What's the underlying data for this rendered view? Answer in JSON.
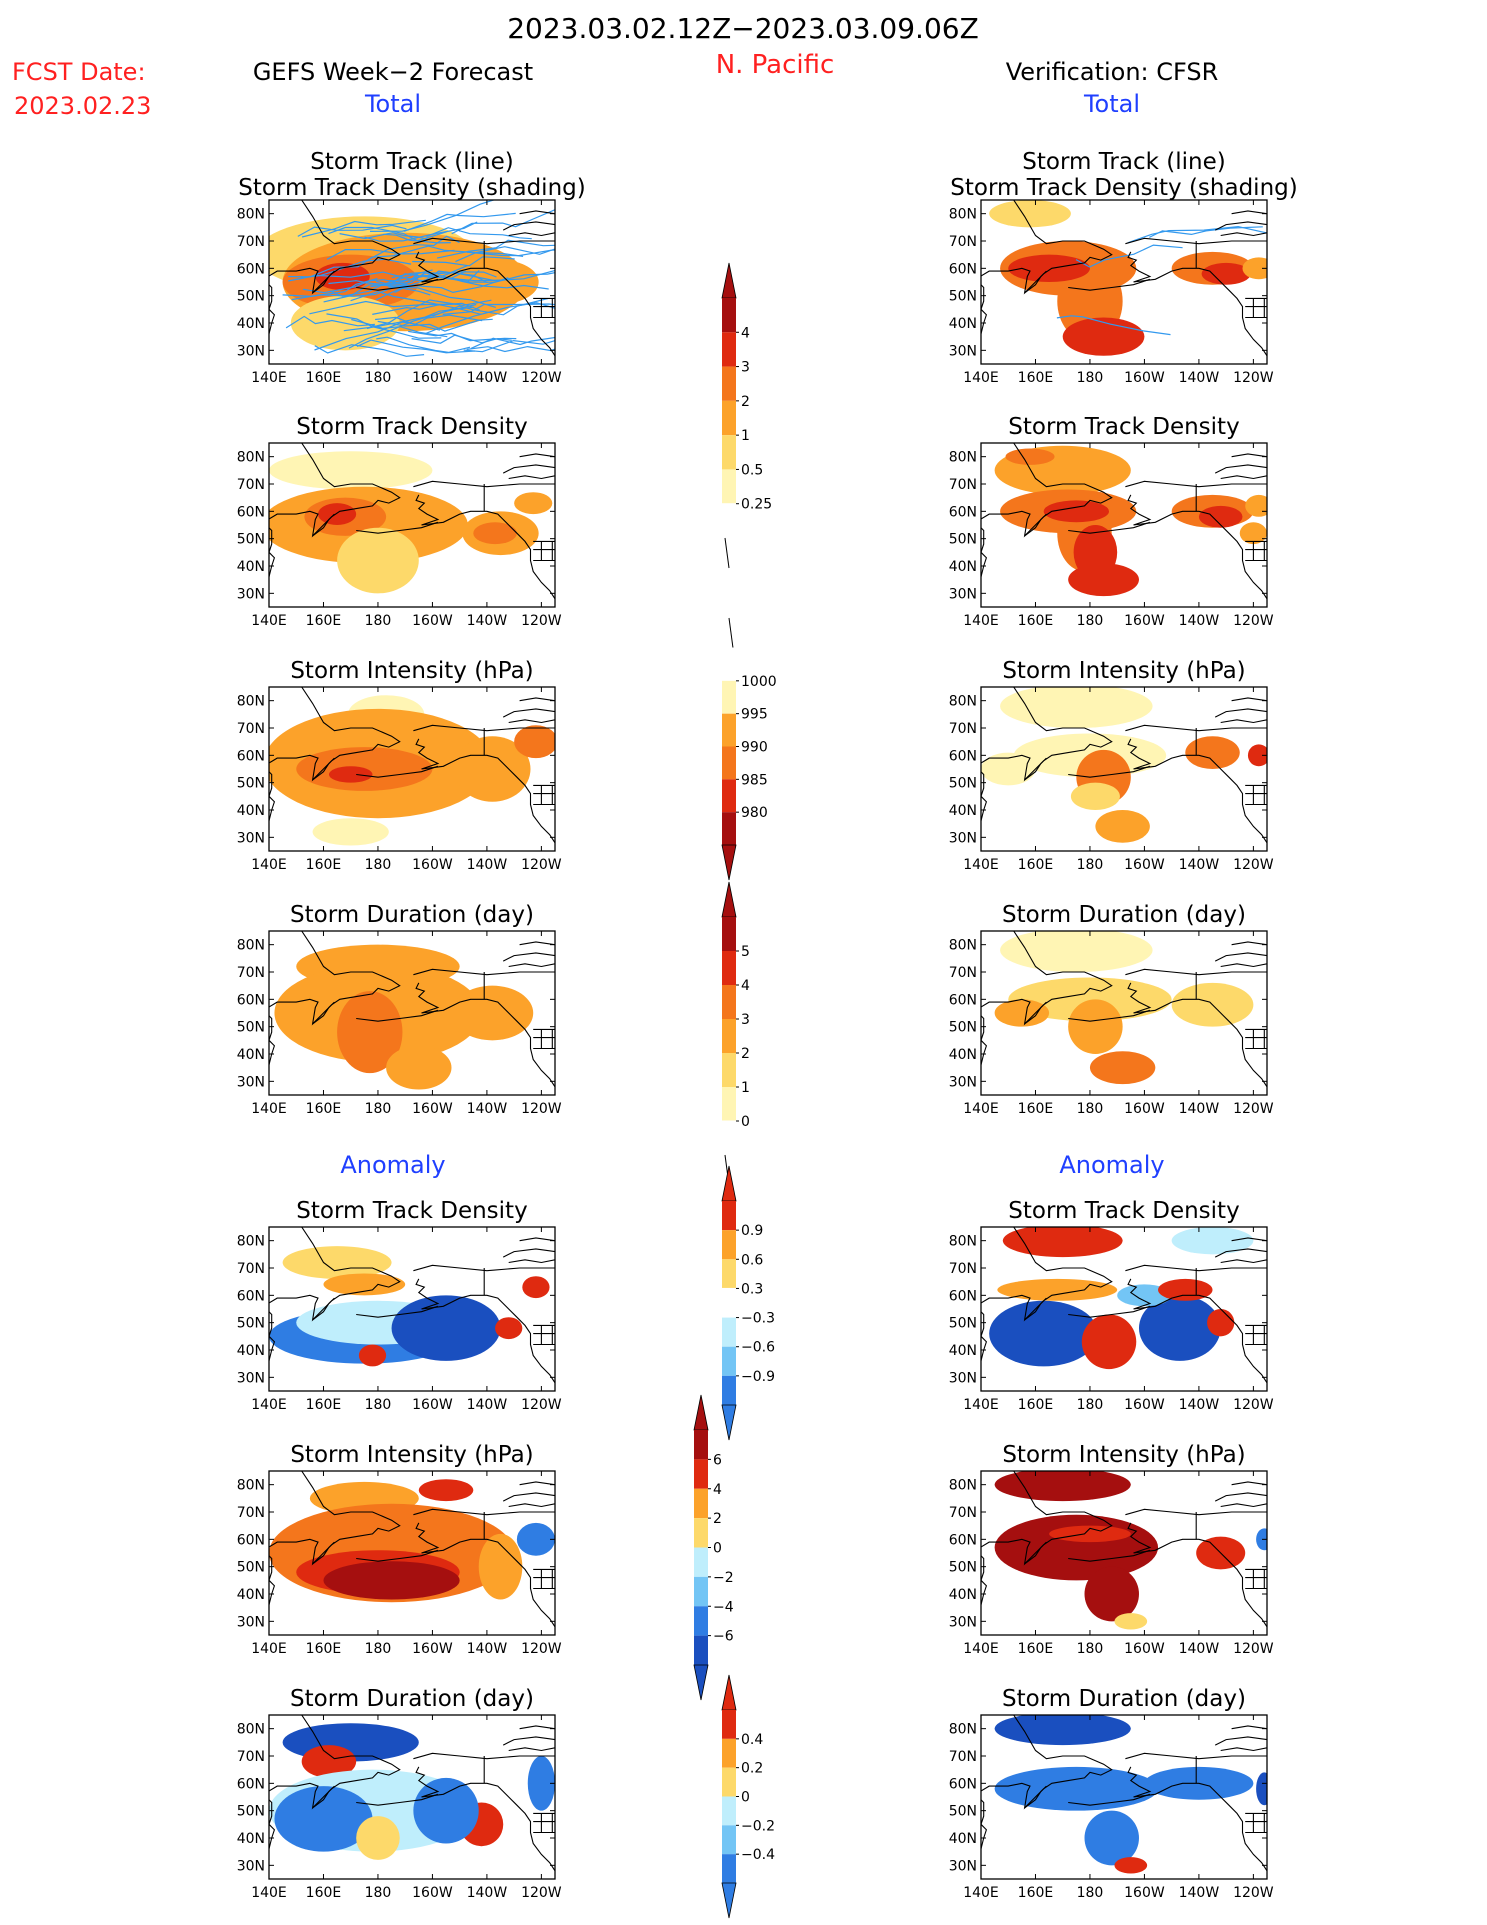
{
  "header": {
    "period": "2023.03.02.12Z−2023.03.09.06Z",
    "fcst_label": "FCST Date:",
    "fcst_date": "2023.02.23",
    "region": "N. Pacific",
    "left_title": "GEFS Week−2 Forecast",
    "right_title": "Verification: CFSR",
    "total_label": "Total",
    "anomaly_label": "Anomaly"
  },
  "panels": {
    "track": [
      "Storm Track (line)",
      "Storm Track Density (shading)"
    ],
    "density": "Storm Track Density",
    "intensity": "Storm Intensity (hPa)",
    "duration": "Storm Duration (day)"
  },
  "axes": {
    "lat_ticks": [
      "80N",
      "70N",
      "60N",
      "50N",
      "40N",
      "30N"
    ],
    "lon_ticks": [
      "140E",
      "160E",
      "180",
      "160W",
      "140W",
      "120W"
    ]
  },
  "colorbars": {
    "density": [
      "4",
      "3",
      "2",
      "1",
      "0.5",
      "0.25"
    ],
    "intensity": [
      "1000",
      "995",
      "990",
      "985",
      "980"
    ],
    "duration": [
      "5",
      "4",
      "3",
      "2",
      "1",
      "0"
    ],
    "density_anom": [
      "0.9",
      "0.6",
      "0.3",
      "−0.3",
      "−0.6",
      "−0.9"
    ],
    "intensity_anom": [
      "6",
      "4",
      "2",
      "0",
      "−2",
      "−4",
      "−6"
    ],
    "duration_anom": [
      "0.4",
      "0.2",
      "0",
      "−0.2",
      "−0.4"
    ]
  },
  "colors": {
    "title": "#000000",
    "red_text": "#ff2020",
    "blue_text": "#1f3fff",
    "ylw1": "#fff5b4",
    "ylw2": "#fdd96a",
    "org1": "#fca22a",
    "org2": "#f4761c",
    "red1": "#df2a10",
    "red2": "#a50f0f",
    "lb1": "#bfeefc",
    "lb2": "#73c5f5",
    "bl1": "#2f7de3",
    "bl2": "#1a4fbf",
    "track_line": "#3399ee"
  },
  "chart_data": {
    "type": "heatmap",
    "domain": "N. Pacific",
    "lat_range": [
      25,
      85
    ],
    "lon_range_east": [
      140,
      245
    ],
    "grid": false,
    "panels_left": [
      "track_density",
      "density",
      "intensity",
      "duration",
      "density_anom",
      "intensity_anom",
      "duration_anom"
    ],
    "panels_right": [
      "track_density",
      "density",
      "intensity",
      "duration",
      "density_anom",
      "intensity_anom",
      "duration_anom"
    ]
  }
}
